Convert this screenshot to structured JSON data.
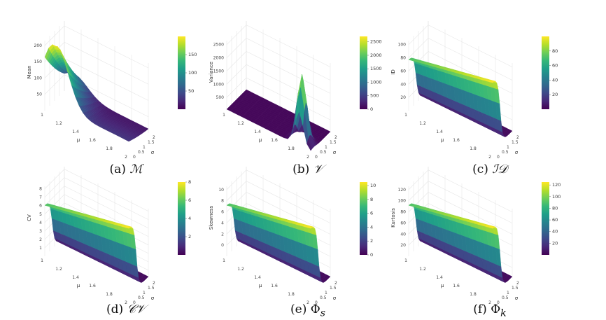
{
  "viridis": [
    "#440154",
    "#482878",
    "#3e4989",
    "#31688e",
    "#26828e",
    "#1f9e89",
    "#35b779",
    "#6ece58",
    "#b5de2b",
    "#fde725"
  ],
  "chart_data": [
    {
      "type": "surface",
      "caption": {
        "prefix": "(a) ",
        "symbol": "ℳ"
      },
      "zlabel": "Mean",
      "x_axis": {
        "label": "μ",
        "ticks": [
          "1",
          "1.2",
          "1.4",
          "1.6",
          "1.8",
          "2"
        ]
      },
      "y_axis": {
        "label": "σ",
        "ticks": [
          "0",
          "0.5",
          "1",
          "1.5",
          "2"
        ]
      },
      "z_ticks": [
        "50",
        "100",
        "150",
        "200"
      ],
      "colorbar": {
        "ticks": [
          "50",
          "100",
          "150"
        ]
      },
      "zlim": [
        0,
        200
      ],
      "shape": "peak"
    },
    {
      "type": "surface",
      "caption": {
        "prefix": "(b) ",
        "symbol": "𝒱"
      },
      "zlabel": "Variance",
      "x_axis": {
        "label": "μ",
        "ticks": [
          "1",
          "1.2",
          "1.4",
          "1.6",
          "1.8",
          "2"
        ]
      },
      "y_axis": {
        "label": "σ",
        "ticks": [
          "0",
          "0.5",
          "1",
          "1.5",
          "2"
        ]
      },
      "z_ticks": [
        "500",
        "1000",
        "1500",
        "2000",
        "2500"
      ],
      "colorbar": {
        "ticks": [
          "0",
          "500",
          "1000",
          "1500",
          "2000",
          "2500"
        ]
      },
      "zlim": [
        0,
        2700
      ],
      "shape": "spike"
    },
    {
      "type": "surface",
      "caption": {
        "prefix": "(c) ",
        "symbol": "ℐ𝒟"
      },
      "zlabel": "ID",
      "x_axis": {
        "label": "μ",
        "ticks": [
          "1",
          "1.2",
          "1.4",
          "1.6",
          "1.8",
          "2"
        ]
      },
      "y_axis": {
        "label": "σ",
        "ticks": [
          "0",
          "0.5",
          "1",
          "1.5",
          "2"
        ]
      },
      "z_ticks": [
        "20",
        "40",
        "60",
        "80",
        "100"
      ],
      "colorbar": {
        "ticks": [
          "20",
          "40",
          "60",
          "80"
        ]
      },
      "zlim": [
        0,
        100
      ],
      "shape": "ramp"
    },
    {
      "type": "surface",
      "caption": {
        "prefix": "(d) ",
        "symbol": "𝒞𝒱"
      },
      "zlabel": "CV",
      "x_axis": {
        "label": "μ",
        "ticks": [
          "1",
          "1.2",
          "1.4",
          "1.6",
          "1.8",
          "2"
        ]
      },
      "y_axis": {
        "label": "σ",
        "ticks": [
          "0",
          "0.5",
          "1",
          "1.5",
          "2"
        ]
      },
      "z_ticks": [
        "1",
        "2",
        "3",
        "4",
        "5",
        "6",
        "7",
        "8"
      ],
      "colorbar": {
        "ticks": [
          "2",
          "4",
          "6",
          "8"
        ]
      },
      "zlim": [
        0,
        8
      ],
      "shape": "ramp"
    },
    {
      "type": "surface",
      "caption": {
        "prefix": "(e) ",
        "symbol": "Φ",
        "sub": "s"
      },
      "zlabel": "Skewness",
      "x_axis": {
        "label": "μ",
        "ticks": [
          "1",
          "1.2",
          "1.4",
          "1.6",
          "1.8",
          "2"
        ]
      },
      "y_axis": {
        "label": "σ",
        "ticks": [
          "0",
          "0.5",
          "1",
          "1.5",
          "2"
        ]
      },
      "z_ticks": [
        "0",
        "2",
        "4",
        "6",
        "8",
        "10"
      ],
      "colorbar": {
        "ticks": [
          "0",
          "2",
          "4",
          "6",
          "8",
          "10"
        ]
      },
      "zlim": [
        0,
        10.5
      ],
      "shape": "ramp"
    },
    {
      "type": "surface",
      "caption": {
        "prefix": "(f) ",
        "symbol": "Φ",
        "sub": "k"
      },
      "zlabel": "Kurtosis",
      "x_axis": {
        "label": "μ",
        "ticks": [
          "1",
          "1.2",
          "1.4",
          "1.6",
          "1.8",
          "2"
        ]
      },
      "y_axis": {
        "label": "σ",
        "ticks": [
          "0",
          "0.5",
          "1",
          "1.5",
          "2"
        ]
      },
      "z_ticks": [
        "20",
        "40",
        "60",
        "80",
        "100",
        "120"
      ],
      "colorbar": {
        "ticks": [
          "20",
          "40",
          "60",
          "80",
          "100",
          "120"
        ]
      },
      "zlim": [
        0,
        125
      ],
      "shape": "ramp"
    }
  ]
}
